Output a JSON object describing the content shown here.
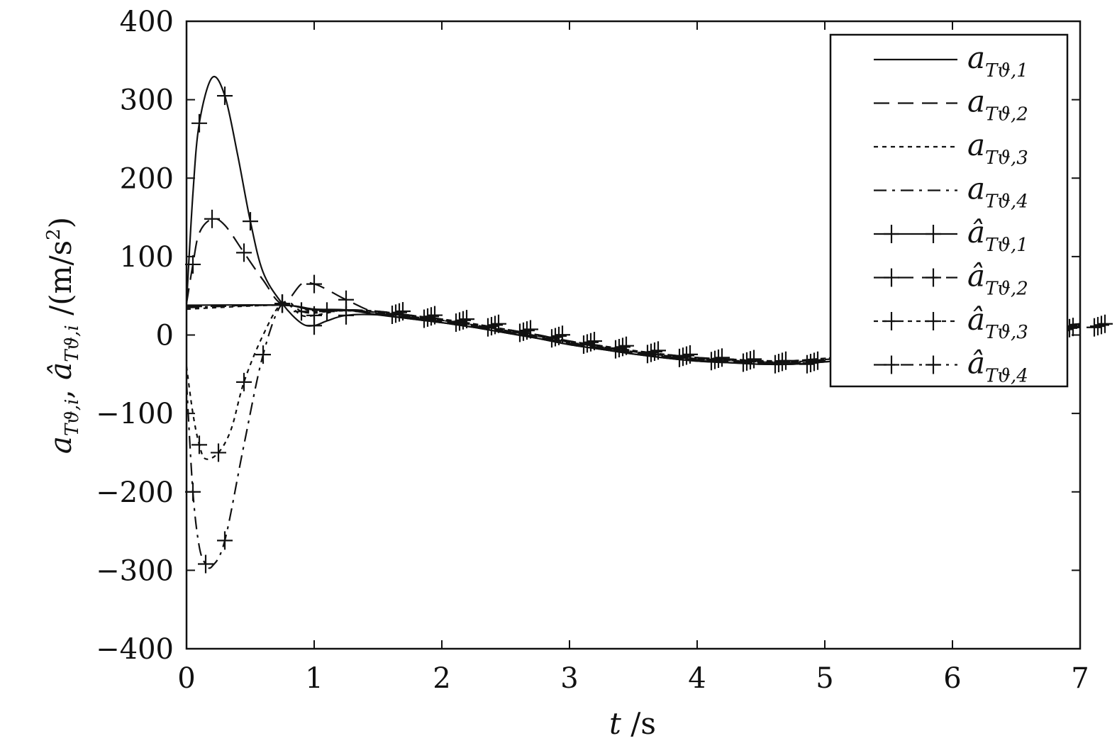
{
  "chart_data": {
    "type": "line",
    "title": "",
    "xlabel": "t /s",
    "ylabel": "a_{Tϑ,i}, â_{Tϑ,i} /(m/s²)",
    "ylabel_parts": {
      "a": "a",
      "hat_a": "â",
      "sub_i": "Tϑ,i",
      "sep": ",",
      "unit": "/(m/s",
      "unit_sup": "2",
      "unit_close": ")"
    },
    "xlabel_parts": {
      "var": "t",
      "unit": " /s"
    },
    "xlim": [
      0,
      7
    ],
    "ylim": [
      -400,
      400
    ],
    "xticks": [
      "0",
      "1",
      "2",
      "3",
      "4",
      "5",
      "6",
      "7"
    ],
    "yticks": [
      "400",
      "300",
      "200",
      "100",
      "0",
      "−100",
      "−200",
      "−300",
      "−400"
    ],
    "grid": false,
    "legend_position": "top-right",
    "series": [
      {
        "name": "a_{Tϑ,1}",
        "base": "a",
        "sub": "Tϑ,1",
        "style": "solid",
        "markers": false,
        "x": [
          0,
          0.75,
          1.0,
          1.25
        ],
        "y": [
          38,
          38,
          33,
          32
        ]
      },
      {
        "name": "a_{Tϑ,2}",
        "base": "a",
        "sub": "Tϑ,2",
        "style": "dashed",
        "markers": false,
        "x": [
          0,
          0.75,
          1.0,
          1.25
        ],
        "y": [
          36,
          38,
          32,
          31
        ]
      },
      {
        "name": "a_{Tϑ,3}",
        "base": "a",
        "sub": "Tϑ,3",
        "style": "dotted",
        "markers": false,
        "x": [
          0,
          0.75,
          1.0,
          1.25
        ],
        "y": [
          33,
          38,
          30,
          31
        ]
      },
      {
        "name": "a_{Tϑ,4}",
        "base": "a",
        "sub": "Tϑ,4",
        "style": "dashdot",
        "markers": false,
        "x": [
          0,
          0.75,
          1.0,
          1.25
        ],
        "y": [
          35,
          38,
          31,
          32
        ]
      },
      {
        "name": "â_{Tϑ,1}",
        "base": "â",
        "sub": "Tϑ,1",
        "style": "solid",
        "markers": true,
        "x": [
          0,
          0.05,
          0.1,
          0.2,
          0.3,
          0.4,
          0.5,
          0.6,
          0.75,
          0.9,
          1.0,
          1.1,
          1.25
        ],
        "y": [
          40,
          180,
          270,
          328,
          305,
          230,
          145,
          80,
          40,
          15,
          12,
          18,
          25
        ]
      },
      {
        "name": "â_{Tϑ,2}",
        "base": "â",
        "sub": "Tϑ,2",
        "style": "dashed",
        "markers": true,
        "x": [
          0,
          0.05,
          0.1,
          0.2,
          0.3,
          0.45,
          0.6,
          0.75,
          0.9,
          1.0,
          1.1,
          1.25
        ],
        "y": [
          40,
          90,
          130,
          148,
          140,
          105,
          70,
          40,
          65,
          65,
          58,
          45
        ]
      },
      {
        "name": "â_{Tϑ,3}",
        "base": "â",
        "sub": "Tϑ,3",
        "style": "dotted",
        "markers": true,
        "x": [
          0,
          0.05,
          0.1,
          0.15,
          0.25,
          0.35,
          0.45,
          0.6,
          0.75,
          0.9,
          1.0,
          1.1,
          1.25
        ],
        "y": [
          -40,
          -100,
          -140,
          -158,
          -150,
          -120,
          -60,
          0,
          40,
          25,
          25,
          28,
          32
        ]
      },
      {
        "name": "â_{Tϑ,4}",
        "base": "â",
        "sub": "Tϑ,4",
        "style": "dashdot",
        "markers": true,
        "x": [
          0,
          0.05,
          0.1,
          0.15,
          0.2,
          0.3,
          0.45,
          0.6,
          0.75,
          0.9,
          1.0,
          1.1,
          1.25
        ],
        "y": [
          -60,
          -200,
          -270,
          -292,
          -295,
          -262,
          -140,
          -25,
          40,
          30,
          28,
          30,
          32
        ]
      }
    ],
    "common_tail": {
      "x": [
        1.5,
        1.75,
        2,
        2.25,
        2.5,
        2.75,
        3,
        3.25,
        3.5,
        3.75,
        4,
        4.25,
        4.5,
        4.75,
        5,
        5.25,
        5.5,
        5.75,
        6,
        6.25,
        6.5,
        6.75,
        7
      ],
      "y": [
        28,
        23,
        18,
        12,
        5,
        -2,
        -10,
        -16,
        -22,
        -27,
        -31,
        -33,
        -35,
        -35,
        -32,
        -29,
        -25,
        -19,
        -12,
        -5,
        2,
        8,
        12
      ]
    }
  }
}
